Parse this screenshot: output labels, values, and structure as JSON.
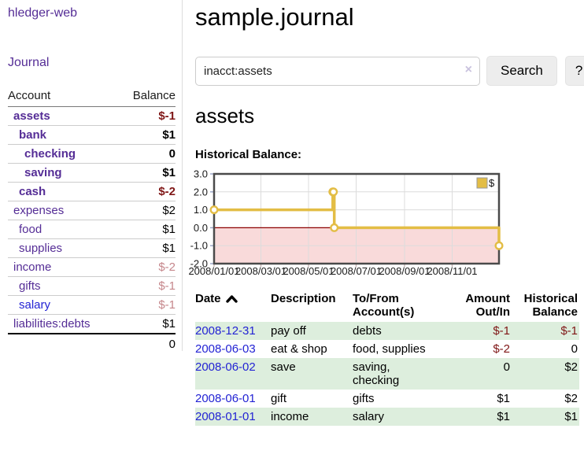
{
  "sidebar": {
    "brand": "hledger-web",
    "nav": [
      {
        "label": "Journal"
      }
    ],
    "accounts_table": {
      "headers": [
        "Account",
        "Balance"
      ],
      "rows": [
        {
          "name": "assets",
          "indent": 1,
          "bold": true,
          "balance": "$-1",
          "balance_style": "neg-strong"
        },
        {
          "name": "bank",
          "indent": 2,
          "bold": true,
          "balance": "$1",
          "balance_style": "pos"
        },
        {
          "name": "checking",
          "indent": 3,
          "bold": true,
          "balance": "0",
          "balance_style": "pos"
        },
        {
          "name": "saving",
          "indent": 3,
          "bold": true,
          "balance": "$1",
          "balance_style": "pos"
        },
        {
          "name": "cash",
          "indent": 2,
          "bold": true,
          "balance": "$-2",
          "balance_style": "neg-strong"
        },
        {
          "name": "expenses",
          "indent": 1,
          "bold": false,
          "balance": "$2",
          "balance_style": "pos"
        },
        {
          "name": "food",
          "indent": 2,
          "bold": false,
          "balance": "$1",
          "balance_style": "pos"
        },
        {
          "name": "supplies",
          "indent": 2,
          "bold": false,
          "balance": "$1",
          "balance_style": "pos"
        },
        {
          "name": "income",
          "indent": 1,
          "bold": false,
          "balance": "$-2",
          "balance_style": "neg-soft"
        },
        {
          "name": "gifts",
          "indent": 2,
          "bold": false,
          "balance": "$-1",
          "balance_style": "neg-soft"
        },
        {
          "name": "salary",
          "indent": 2,
          "bold": false,
          "link_style": "blue",
          "balance": "$-1",
          "balance_style": "neg-soft"
        },
        {
          "name": "liabilities:debts",
          "indent": 1,
          "bold": false,
          "balance": "$1",
          "balance_style": "pos"
        }
      ],
      "total": "0"
    }
  },
  "header": {
    "title": "sample.journal"
  },
  "search": {
    "value": "inacct:assets",
    "placeholder": "",
    "button_label": "Search",
    "help_label": "?"
  },
  "icons": {
    "clear_search": "×",
    "sort_ascending": "chevron-up"
  },
  "account_page": {
    "title": "assets",
    "chart_label": "Historical Balance:"
  },
  "chart_data": {
    "type": "line",
    "step": true,
    "title": "Historical Balance",
    "series": [
      {
        "name": "$",
        "color": "#e3bd45",
        "x": [
          "2008-01-01",
          "2008-06-01",
          "2008-06-02",
          "2008-06-03",
          "2008-12-31"
        ],
        "values": [
          1,
          2,
          2,
          0,
          -1
        ]
      }
    ],
    "ylim": [
      -2,
      3
    ],
    "yticks": [
      3,
      2,
      1,
      0,
      -1,
      -2
    ],
    "ytick_labels": [
      "3.0",
      "2.0",
      "1.0",
      "0.0",
      "-1.0",
      "-2.0"
    ],
    "xrange": [
      "2008-01-01",
      "2008-12-31"
    ],
    "xticks": [
      "2008-01-01",
      "2008-03-01",
      "2008-05-01",
      "2008-07-01",
      "2008-09-01",
      "2008-11-01"
    ],
    "xtick_labels": [
      "2008/01/01",
      "2008/03/01",
      "2008/05/01",
      "2008/07/01",
      "2008/09/01",
      "2008/11/01"
    ],
    "legend": {
      "label": "$",
      "position": "top-right"
    },
    "grid": true,
    "zero_line_color": "#8b0000",
    "negative_region_color": "#f9dada"
  },
  "register_table": {
    "headers": [
      "Date",
      "Description",
      "To/From Account(s)",
      "Amount Out/In",
      "Historical Balance"
    ],
    "rows": [
      {
        "date": "2008-12-31",
        "description": "pay off",
        "accounts": "debts",
        "amount": "$-1",
        "amount_neg": true,
        "balance": "$-1",
        "balance_neg": true,
        "shaded": true
      },
      {
        "date": "2008-06-03",
        "description": "eat & shop",
        "accounts": "food, supplies",
        "amount": "$-2",
        "amount_neg": true,
        "balance": "0",
        "balance_neg": false,
        "shaded": false
      },
      {
        "date": "2008-06-02",
        "description": "save",
        "accounts": "saving, checking",
        "amount": "0",
        "amount_neg": false,
        "balance": "$2",
        "balance_neg": false,
        "shaded": true
      },
      {
        "date": "2008-06-01",
        "description": "gift",
        "accounts": "gifts",
        "amount": "$1",
        "amount_neg": false,
        "balance": "$2",
        "balance_neg": false,
        "shaded": false
      },
      {
        "date": "2008-01-01",
        "description": "income",
        "accounts": "salary",
        "amount": "$1",
        "amount_neg": false,
        "balance": "$1",
        "balance_neg": false,
        "shaded": true
      }
    ]
  },
  "colors": {
    "link_purple": "#552d96",
    "link_blue": "#2323d4",
    "negative_strong": "#7f1616",
    "negative_soft": "#c5868b",
    "row_band_green": "#ddeedd",
    "chart_gold": "#e3bd45",
    "chart_negative_fill": "#f9dada",
    "chart_zero_line": "#8b0000",
    "button_bg": "#ededed"
  }
}
